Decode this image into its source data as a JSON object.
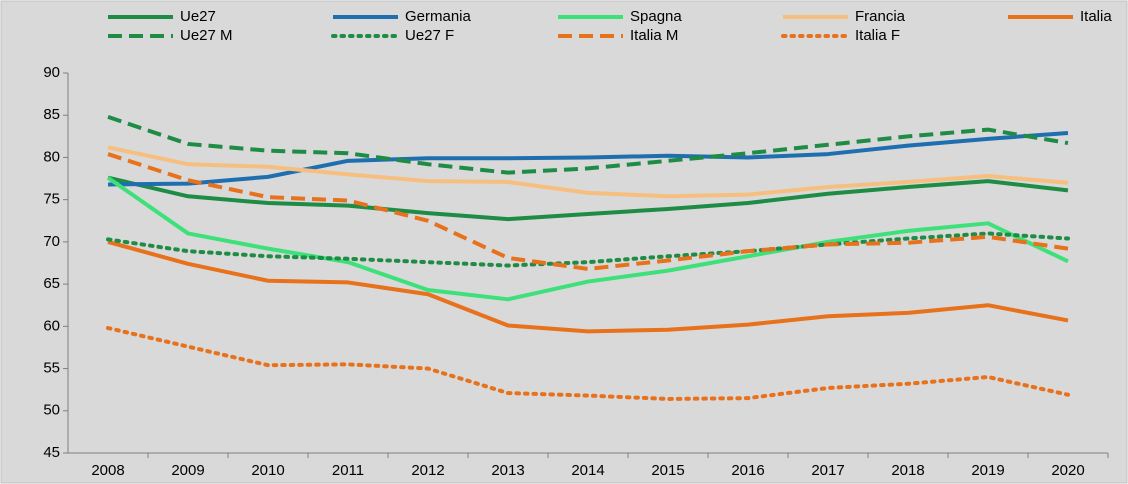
{
  "chart_data": {
    "type": "line",
    "categories": [
      "2008",
      "2009",
      "2010",
      "2011",
      "2012",
      "2013",
      "2014",
      "2015",
      "2016",
      "2017",
      "2018",
      "2019",
      "2020"
    ],
    "ylim": [
      45,
      90
    ],
    "yticks": [
      45,
      50,
      55,
      60,
      65,
      70,
      75,
      80,
      85,
      90
    ],
    "grid": false,
    "legend": "top",
    "series": [
      {
        "name": "Ue27",
        "color": "#1e8c45",
        "dash": "solid",
        "values": [
          77.6,
          75.4,
          74.6,
          74.3,
          73.4,
          72.7,
          73.3,
          73.9,
          74.6,
          75.7,
          76.5,
          77.2,
          76.1
        ]
      },
      {
        "name": "Germania",
        "color": "#1f6fb0",
        "dash": "solid",
        "values": [
          76.8,
          76.9,
          77.7,
          79.6,
          79.9,
          79.9,
          80.0,
          80.2,
          80.0,
          80.4,
          81.4,
          82.2,
          82.9
        ]
      },
      {
        "name": "Spagna",
        "color": "#3ee07a",
        "dash": "solid",
        "values": [
          77.6,
          71.0,
          69.2,
          67.6,
          64.3,
          63.2,
          65.3,
          66.6,
          68.3,
          70.0,
          71.3,
          72.2,
          67.7
        ]
      },
      {
        "name": "Francia",
        "color": "#f7bf7f",
        "dash": "solid",
        "values": [
          81.2,
          79.2,
          78.9,
          78.0,
          77.2,
          77.1,
          75.8,
          75.4,
          75.6,
          76.5,
          77.1,
          77.8,
          77.0
        ]
      },
      {
        "name": "Italia",
        "color": "#e8711c",
        "dash": "solid",
        "values": [
          70.0,
          67.4,
          65.4,
          65.2,
          63.8,
          60.1,
          59.4,
          59.6,
          60.2,
          61.2,
          61.6,
          62.5,
          60.7
        ]
      },
      {
        "name": "Ue27 M",
        "color": "#1e8c45",
        "dash": "dashed",
        "values": [
          84.8,
          81.6,
          80.8,
          80.5,
          79.2,
          78.2,
          78.7,
          79.6,
          80.5,
          81.5,
          82.5,
          83.3,
          81.7
        ]
      },
      {
        "name": "Ue27 F",
        "color": "#1e8c45",
        "dash": "dotted",
        "values": [
          70.3,
          68.9,
          68.3,
          68.0,
          67.6,
          67.2,
          67.6,
          68.3,
          68.9,
          69.7,
          70.4,
          71.0,
          70.4
        ]
      },
      {
        "name": "Italia M",
        "color": "#e8711c",
        "dash": "dashed",
        "values": [
          80.4,
          77.3,
          75.3,
          74.9,
          72.5,
          68.1,
          66.8,
          67.8,
          68.9,
          69.7,
          69.9,
          70.6,
          69.2
        ]
      },
      {
        "name": "Italia F",
        "color": "#e8711c",
        "dash": "dotted",
        "values": [
          59.8,
          57.6,
          55.4,
          55.5,
          55.0,
          52.1,
          51.8,
          51.4,
          51.5,
          52.7,
          53.2,
          54.0,
          51.9
        ]
      }
    ]
  }
}
